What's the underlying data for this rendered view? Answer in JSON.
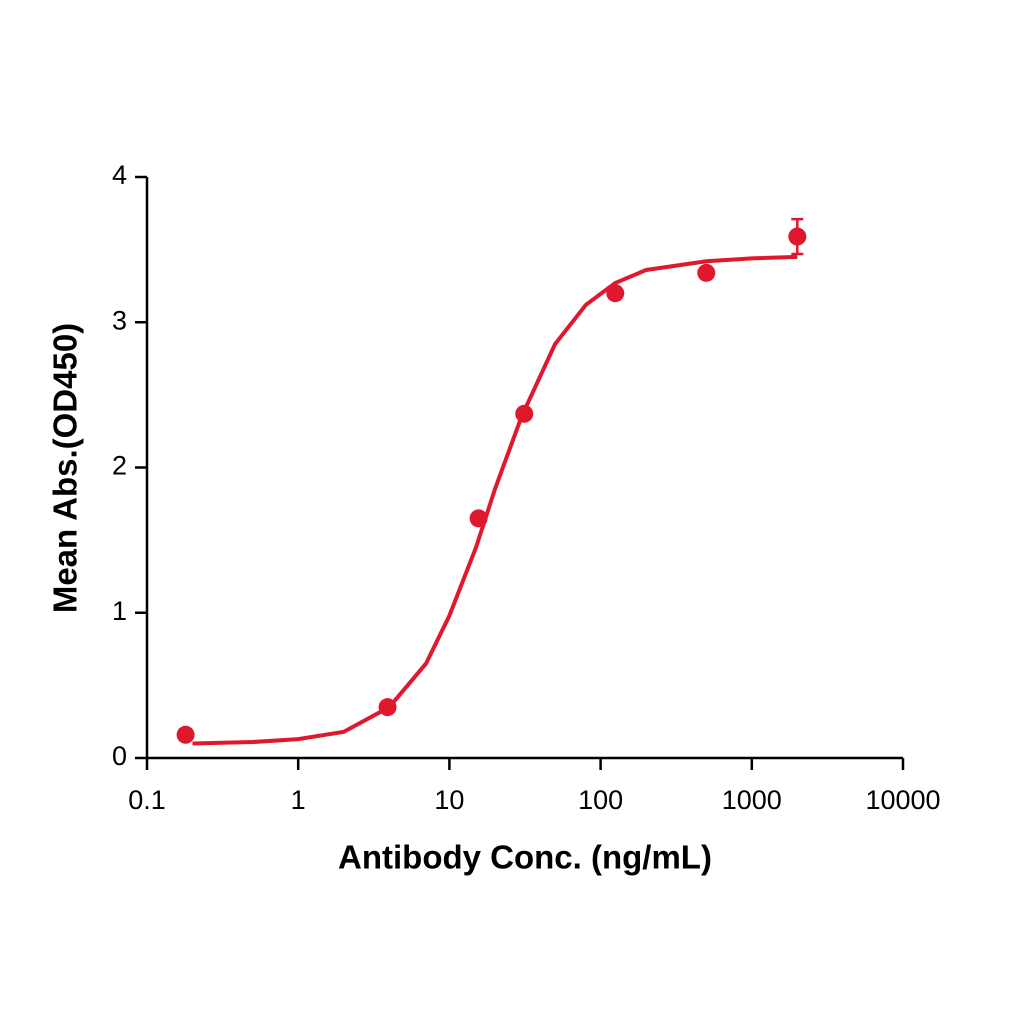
{
  "chart_data": {
    "type": "scatter",
    "x_label": "Antibody Conc. (ng/mL)",
    "y_label": "Mean Abs.(OD450)",
    "x_scale": "log",
    "xlim": [
      0.1,
      10000
    ],
    "xticks": [
      0.1,
      1,
      10,
      100,
      1000,
      10000
    ],
    "ylim": [
      0,
      4
    ],
    "yticks": [
      0,
      1,
      2,
      3,
      4
    ],
    "color": "#e0182d",
    "x": [
      0.18,
      3.9,
      15.6,
      31.25,
      125,
      500,
      2000
    ],
    "values": [
      0.16,
      0.35,
      1.65,
      2.37,
      3.2,
      3.34,
      3.59
    ],
    "errors": [
      null,
      null,
      null,
      null,
      null,
      null,
      0.12
    ],
    "curve": {
      "x": [
        0.2,
        0.5,
        1,
        2,
        4,
        7,
        10,
        15,
        20,
        30,
        50,
        80,
        125,
        200,
        500,
        1000,
        2000
      ],
      "values": [
        0.1,
        0.11,
        0.13,
        0.18,
        0.35,
        0.65,
        0.98,
        1.45,
        1.85,
        2.35,
        2.85,
        3.12,
        3.27,
        3.36,
        3.42,
        3.44,
        3.45
      ]
    }
  }
}
